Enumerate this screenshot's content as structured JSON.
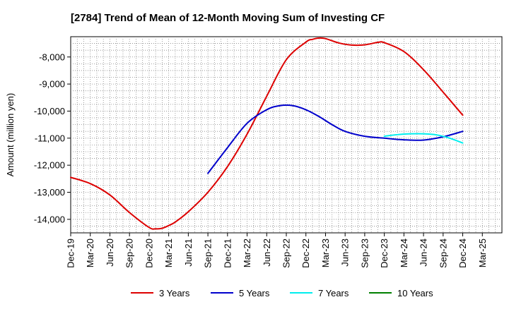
{
  "chart_data": {
    "type": "line",
    "title": "[2784]  Trend of Mean of 12-Month Moving Sum of Investing CF",
    "xlabel": "",
    "ylabel": "Amount (million yen)",
    "ylim": [
      -14500,
      -7250
    ],
    "y_ticks": [
      -14000,
      -13000,
      -12000,
      -11000,
      -10000,
      -9000,
      -8000
    ],
    "y_tick_labels": [
      "-14,000",
      "-13,000",
      "-12,000",
      "-11,000",
      "-10,000",
      "-9,000",
      "-8,000"
    ],
    "x_tick_labels": [
      "Dec-19",
      "Mar-20",
      "Jun-20",
      "Sep-20",
      "Dec-20",
      "Mar-21",
      "Jun-21",
      "Sep-21",
      "Dec-21",
      "Mar-22",
      "Jun-22",
      "Sep-22",
      "Dec-22",
      "Mar-23",
      "Jun-23",
      "Sep-23",
      "Dec-23",
      "Mar-24",
      "Jun-24",
      "Sep-24",
      "Dec-24",
      "Mar-25"
    ],
    "x_unit": "months since Dec-19",
    "x_range": [
      0,
      66
    ],
    "grid": true,
    "legend_position": "bottom",
    "series": [
      {
        "name": "3 Years",
        "color": "#dd0000",
        "x": [
          0,
          3,
          6,
          9,
          12,
          13,
          14,
          15,
          16,
          18,
          21,
          24,
          27,
          30,
          33,
          36,
          37,
          38,
          39,
          41,
          43,
          45,
          47,
          48,
          51,
          54,
          57,
          60
        ],
        "y": [
          -12450,
          -12680,
          -13100,
          -13750,
          -14300,
          -14350,
          -14330,
          -14230,
          -14100,
          -13720,
          -13000,
          -12050,
          -10850,
          -9450,
          -8100,
          -7450,
          -7350,
          -7300,
          -7320,
          -7480,
          -7560,
          -7550,
          -7460,
          -7470,
          -7800,
          -8470,
          -9300,
          -10150
        ]
      },
      {
        "name": "5 Years",
        "color": "#0000cc",
        "x": [
          21,
          24,
          27,
          30,
          32,
          34,
          36,
          38,
          40,
          42,
          45,
          48,
          51,
          54,
          57,
          60
        ],
        "y": [
          -12300,
          -11350,
          -10450,
          -9950,
          -9800,
          -9800,
          -9950,
          -10200,
          -10500,
          -10750,
          -10930,
          -11000,
          -11060,
          -11070,
          -10950,
          -10750
        ]
      },
      {
        "name": "7 Years",
        "color": "#00eeee",
        "x": [
          48,
          50,
          52,
          54,
          56,
          58,
          60
        ],
        "y": [
          -10930,
          -10870,
          -10840,
          -10840,
          -10880,
          -11000,
          -11180
        ]
      },
      {
        "name": "10 Years",
        "color": "#008000",
        "x": [],
        "y": []
      }
    ]
  }
}
